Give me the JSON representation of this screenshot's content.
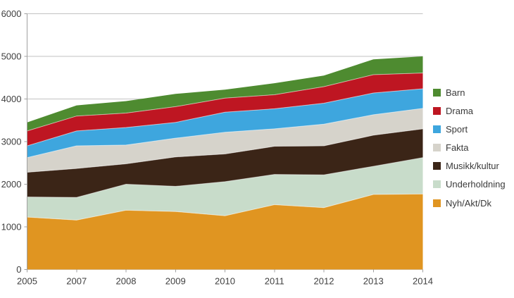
{
  "chart_data": {
    "type": "area",
    "stacked": true,
    "title": "",
    "xlabel": "",
    "ylabel": "",
    "categories": [
      "2005",
      "2007",
      "2008",
      "2009",
      "2010",
      "2011",
      "2012",
      "2013",
      "2014"
    ],
    "series": [
      {
        "name": "Nyh/Akt/Dk",
        "color": "#E09521",
        "values": [
          1230,
          1160,
          1390,
          1360,
          1260,
          1520,
          1450,
          1760,
          1770
        ]
      },
      {
        "name": "Underholdning",
        "color": "#C8DCCA",
        "values": [
          470,
          530,
          610,
          590,
          800,
          710,
          770,
          660,
          855
        ]
      },
      {
        "name": "Musikk/kultur",
        "color": "#3B2517",
        "values": [
          580,
          680,
          480,
          690,
          650,
          660,
          680,
          730,
          675
        ]
      },
      {
        "name": "Fakta",
        "color": "#D6D3CB",
        "values": [
          345,
          530,
          440,
          440,
          510,
          410,
          510,
          480,
          480
        ]
      },
      {
        "name": "Sport",
        "color": "#3EA6DE",
        "values": [
          275,
          350,
          410,
          370,
          470,
          470,
          490,
          510,
          460
        ]
      },
      {
        "name": "Drama",
        "color": "#BE1622",
        "values": [
          350,
          350,
          340,
          370,
          330,
          330,
          390,
          430,
          370
        ]
      },
      {
        "name": "Barn",
        "color": "#4E8B30",
        "values": [
          200,
          250,
          280,
          300,
          200,
          270,
          260,
          360,
          390
        ]
      }
    ],
    "totals": [
      3450,
      3850,
      3950,
      4120,
      4220,
      4370,
      4550,
      4930,
      5000
    ],
    "y_axis": {
      "min": 0,
      "max": 6000,
      "tick_step": 1000,
      "tick_labels": [
        "0",
        "1000",
        "2000",
        "3000",
        "4000",
        "5000",
        "6000"
      ]
    },
    "legend": {
      "position": "right",
      "order_top_to_bottom": [
        "Barn",
        "Drama",
        "Sport",
        "Fakta",
        "Musikk/kultur",
        "Underholdning",
        "Nyh/Akt/Dk"
      ]
    },
    "grid": "horizontal",
    "colors": {
      "background": "#FFFFFF",
      "gridline": "#C2C2C2",
      "axis": "#A0A0A0",
      "tick_text": "#3F3F3F",
      "seam": "#FFFFFF"
    }
  }
}
